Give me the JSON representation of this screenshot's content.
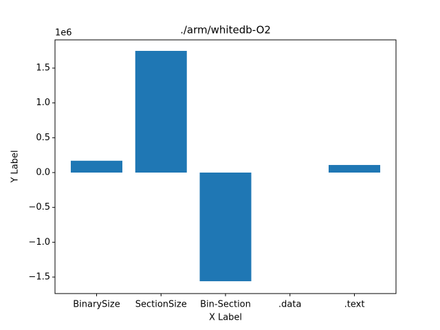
{
  "chart_data": {
    "type": "bar",
    "title": "./arm/whitedb-O2",
    "x_label": "X Label",
    "y_label": "Y Label",
    "y_offset_label": "1e6",
    "categories": [
      "BinarySize",
      "SectionSize",
      "Bin-Section",
      ".data",
      ".text"
    ],
    "values": [
      0.17,
      1.747,
      -1.56,
      0,
      0.109
    ],
    "color": "#1f77b4",
    "ylim": [
      -1.737,
      1.905
    ],
    "yticks": [
      {
        "value": -1.5,
        "label": "−1.5"
      },
      {
        "value": -1.0,
        "label": "−1.0"
      },
      {
        "value": -0.5,
        "label": "−0.5"
      },
      {
        "value": 0,
        "label": "0.0"
      },
      0.5,
      {
        "value": 1.0,
        "label": "1.0"
      },
      1.5
    ],
    "grid": false
  }
}
